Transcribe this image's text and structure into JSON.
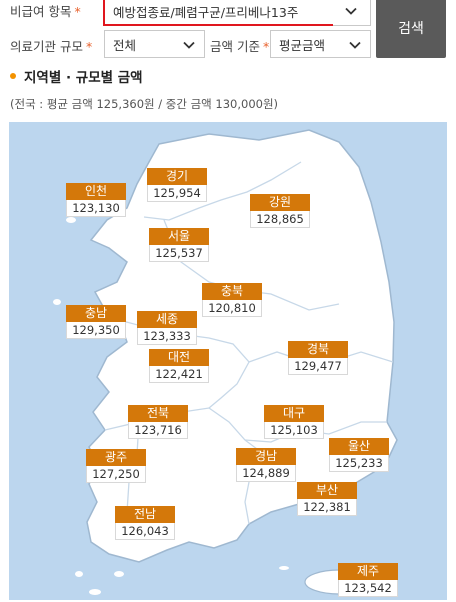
{
  "filters": {
    "non_covered_item": {
      "label": "비급여 항목",
      "required_mark": "*",
      "value": "예방접종료/폐렴구균/프리베나13주"
    },
    "institution_size": {
      "label": "의료기관 규모",
      "required_mark": "*",
      "value": "전체"
    },
    "amount_basis": {
      "label": "금액 기준",
      "required_mark": "*",
      "value": "평균금액"
    },
    "search_label": "검색"
  },
  "section": {
    "title": "지역별 · 규모별 금액",
    "summary": "(전국 : 평균 금액 125,360원 / 중간 금액 130,000원)"
  },
  "regions": [
    {
      "name": "인천",
      "amount": "123,130"
    },
    {
      "name": "경기",
      "amount": "125,954"
    },
    {
      "name": "강원",
      "amount": "128,865"
    },
    {
      "name": "서울",
      "amount": "125,537"
    },
    {
      "name": "충북",
      "amount": "120,810"
    },
    {
      "name": "충남",
      "amount": "129,350"
    },
    {
      "name": "세종",
      "amount": "123,333"
    },
    {
      "name": "대전",
      "amount": "122,421"
    },
    {
      "name": "경북",
      "amount": "129,477"
    },
    {
      "name": "전북",
      "amount": "123,716"
    },
    {
      "name": "대구",
      "amount": "125,103"
    },
    {
      "name": "광주",
      "amount": "127,250"
    },
    {
      "name": "경남",
      "amount": "124,889"
    },
    {
      "name": "울산",
      "amount": "125,233"
    },
    {
      "name": "부산",
      "amount": "122,381"
    },
    {
      "name": "전남",
      "amount": "126,043"
    },
    {
      "name": "제주",
      "amount": "123,542"
    }
  ],
  "colors": {
    "region_label_bg": "#d4780a",
    "map_sea": "#bcd6ee",
    "map_land": "#ffffff",
    "search_button": "#5a5a5a",
    "highlight_border": "#e0161e",
    "bullet": "#f39200"
  },
  "icons": {
    "dropdown": "chevron-down-icon"
  }
}
